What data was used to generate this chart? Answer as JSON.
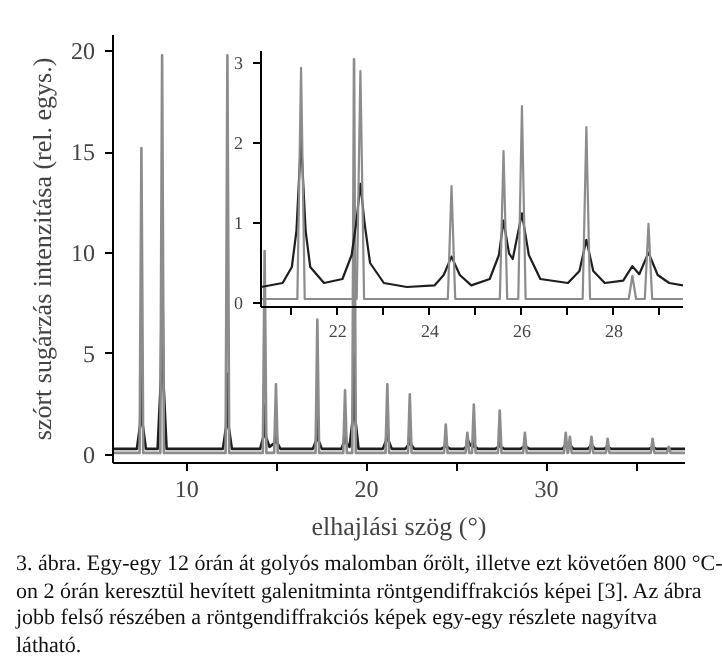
{
  "chart_data": [
    {
      "type": "line",
      "xlabel": "elhajlási szög (°)",
      "ylabel": "szórt sugárzás intenzitása (rel. egys.)",
      "xlim": [
        5.9,
        37.7
      ],
      "ylim": [
        -0.4,
        20.8
      ],
      "xticks": [
        10,
        {
          "value": 15,
          "label": null
        },
        20,
        {
          "value": 25,
          "label": null
        },
        30,
        {
          "value": 35,
          "label": null
        }
      ],
      "yticks": [
        0,
        5,
        10,
        15,
        20
      ],
      "annotations": [
        "3. ábra. Egy-egy 12 órán át golyós malomban őrölt, illetve ezt követően 800 °C-on 2 órán keresztül hevített galenitminta röntgendiffrakciós képei [3]. Az ábra jobb felső részében a röntgendiffrakciós képek egy-egy részlete nagyítva látható."
      ],
      "series": [
        {
          "color": "#1e1e1e",
          "x": [
            5.9,
            7.23,
            7.41,
            7.48,
            7.55,
            7.73,
            8.38,
            8.56,
            8.63,
            8.7,
            8.88,
            12.01,
            12.19,
            12.26,
            12.33,
            12.51,
            14.08,
            14.26,
            14.33,
            14.4,
            14.6,
            14.89,
            14.96,
            15.03,
            15.21,
            17.01,
            17.19,
            17.26,
            17.33,
            17.51,
            18.6,
            18.73,
            18.8,
            18.87,
            19.05,
            19.23,
            19.3,
            19.37,
            19.55,
            20.9,
            21.08,
            21.15,
            21.22,
            21.4,
            22.15,
            22.33,
            22.4,
            22.47,
            22.65,
            24.15,
            24.33,
            24.4,
            24.47,
            24.65,
            25.4,
            25.53,
            25.6,
            25.75,
            25.89,
            25.96,
            26.03,
            26.2,
            27.15,
            27.33,
            27.4,
            27.47,
            27.65,
            28.55,
            28.73,
            28.8,
            28.87,
            29.05,
            30.9,
            31.07,
            31.2,
            31.3,
            31.5,
            32.3,
            32.5,
            32.7,
            33.2,
            33.4,
            33.6,
            35.7,
            35.9,
            36.1,
            37.7
          ],
          "values": [
            0.3,
            0.3,
            1.5,
            4.3,
            1.5,
            0.3,
            0.3,
            3.7,
            10.6,
            3.7,
            0.3,
            0.3,
            1.4,
            4.0,
            1.4,
            0.3,
            0.3,
            0.9,
            2.5,
            0.9,
            0.4,
            0.6,
            1.5,
            0.6,
            0.3,
            0.3,
            0.7,
            2.0,
            0.7,
            0.3,
            0.3,
            0.6,
            1.5,
            0.6,
            0.4,
            1.8,
            5.0,
            1.8,
            0.3,
            0.3,
            0.7,
            1.7,
            0.7,
            0.3,
            0.3,
            0.5,
            1.2,
            0.5,
            0.3,
            0.3,
            0.4,
            0.6,
            0.4,
            0.3,
            0.3,
            0.4,
            0.8,
            0.5,
            0.4,
            0.9,
            0.4,
            0.3,
            0.3,
            0.4,
            0.7,
            0.4,
            0.3,
            0.3,
            0.4,
            0.6,
            0.4,
            0.3,
            0.3,
            0.5,
            0.4,
            0.5,
            0.3,
            0.3,
            0.5,
            0.3,
            0.3,
            0.4,
            0.3,
            0.3,
            0.4,
            0.3,
            0.3
          ]
        },
        {
          "color": "#8c8c8c",
          "x": [
            5.9,
            7.38,
            7.48,
            7.58,
            8.53,
            8.63,
            8.73,
            12.16,
            12.26,
            12.36,
            14.23,
            14.33,
            14.43,
            14.86,
            14.96,
            15.06,
            17.16,
            17.26,
            17.36,
            18.7,
            18.8,
            18.9,
            19.2,
            19.3,
            19.4,
            21.05,
            21.15,
            21.25,
            22.3,
            22.4,
            22.5,
            24.3,
            24.4,
            24.5,
            25.5,
            25.6,
            25.7,
            25.86,
            25.96,
            26.06,
            27.3,
            27.4,
            27.5,
            28.7,
            28.8,
            28.9,
            30.97,
            31.07,
            31.17,
            31.2,
            31.3,
            31.4,
            32.4,
            32.5,
            32.6,
            33.3,
            33.4,
            33.5,
            35.8,
            35.9,
            36.0,
            36.7,
            36.8,
            36.9,
            37.7
          ],
          "values": [
            0.1,
            0.1,
            15.2,
            0.1,
            0.1,
            19.8,
            0.1,
            0.1,
            19.8,
            0.1,
            0.1,
            10.1,
            0.1,
            0.1,
            3.5,
            0.1,
            0.1,
            6.7,
            0.1,
            0.1,
            3.2,
            0.1,
            0.1,
            19.6,
            0.1,
            0.1,
            3.5,
            0.1,
            0.1,
            3.0,
            0.1,
            0.1,
            1.5,
            0.1,
            0.1,
            1.1,
            0.1,
            0.1,
            2.5,
            0.1,
            0.1,
            2.2,
            0.1,
            0.1,
            1.1,
            0.1,
            0.1,
            1.1,
            0.1,
            0.1,
            0.9,
            0.1,
            0.1,
            0.9,
            0.1,
            0.1,
            0.8,
            0.1,
            0.1,
            0.8,
            0.1,
            0.1,
            0.4,
            0.1,
            0.1
          ]
        }
      ]
    },
    {
      "type": "line",
      "xlim": [
        20.33,
        29.5
      ],
      "ylim": [
        -0.05,
        3.15
      ],
      "xticks": [
        {
          "value": 21,
          "label": null
        },
        22,
        {
          "value": 23,
          "label": null
        },
        24,
        {
          "value": 25,
          "label": null
        },
        26,
        {
          "value": 27,
          "label": null
        },
        28,
        {
          "value": 29,
          "label": null
        }
      ],
      "yticks": [
        0,
        1,
        2,
        3
      ],
      "series": [
        {
          "color": "#1e1e1e",
          "x": [
            20.33,
            20.8,
            21.0,
            21.1,
            21.2,
            21.3,
            21.4,
            21.7,
            22.1,
            22.3,
            22.4,
            22.49,
            22.58,
            22.7,
            23.0,
            23.5,
            24.1,
            24.3,
            24.47,
            24.65,
            24.9,
            25.3,
            25.5,
            25.6,
            25.72,
            25.8,
            26.0,
            26.15,
            26.4,
            27.0,
            27.25,
            27.4,
            27.55,
            27.8,
            28.2,
            28.4,
            28.55,
            28.75,
            28.95,
            29.2,
            29.5
          ],
          "values": [
            0.2,
            0.25,
            0.45,
            0.9,
            2.05,
            0.9,
            0.45,
            0.25,
            0.3,
            0.6,
            1.0,
            1.49,
            1.0,
            0.5,
            0.25,
            0.2,
            0.22,
            0.35,
            0.58,
            0.35,
            0.22,
            0.3,
            0.6,
            1.03,
            0.62,
            0.55,
            1.12,
            0.6,
            0.3,
            0.25,
            0.4,
            0.79,
            0.4,
            0.25,
            0.28,
            0.46,
            0.36,
            0.63,
            0.35,
            0.25,
            0.22
          ]
        },
        {
          "color": "#8c8c8c",
          "x": [
            20.33,
            21.12,
            21.2,
            21.28,
            22.41,
            22.49,
            22.57,
            24.39,
            24.47,
            24.55,
            25.52,
            25.6,
            25.68,
            25.92,
            26.0,
            26.08,
            27.32,
            27.4,
            27.48,
            28.32,
            28.4,
            28.48,
            28.67,
            28.75,
            28.83,
            29.5
          ],
          "values": [
            0.05,
            0.05,
            2.94,
            0.05,
            0.05,
            2.9,
            0.05,
            0.05,
            1.46,
            0.05,
            0.05,
            1.9,
            0.05,
            0.05,
            2.46,
            0.05,
            0.05,
            2.2,
            0.05,
            0.05,
            0.34,
            0.05,
            0.05,
            0.99,
            0.05,
            0.05
          ]
        }
      ]
    }
  ]
}
